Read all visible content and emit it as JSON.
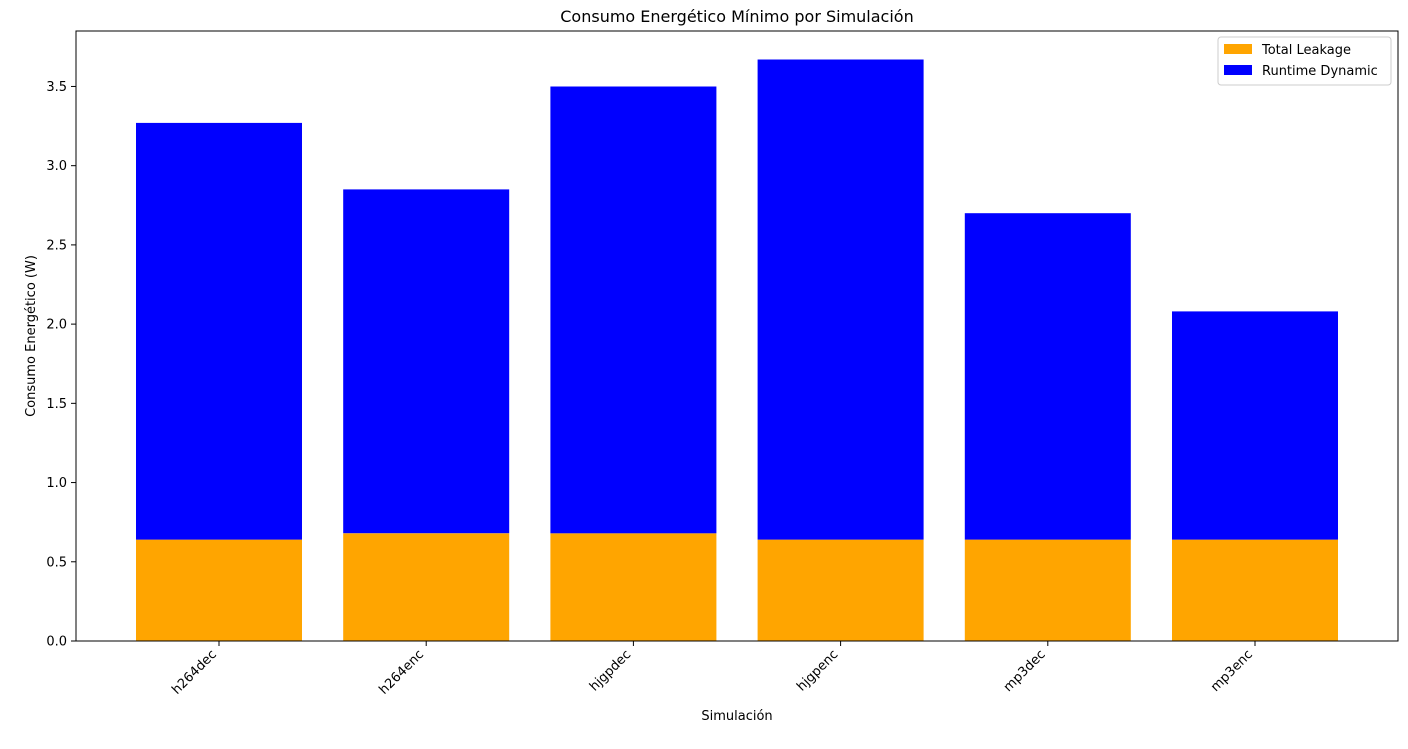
{
  "chart_data": {
    "type": "bar",
    "stacked": true,
    "title": "Consumo Energético Mínimo por Simulación",
    "xlabel": "Simulación",
    "ylabel": "Consumo Energético (W)",
    "categories": [
      "h264dec",
      "h264enc",
      "hjgpdec",
      "hjgpenc",
      "mp3dec",
      "mp3enc"
    ],
    "series": [
      {
        "name": "Total Leakage",
        "color": "#ffa500",
        "values": [
          0.64,
          0.68,
          0.68,
          0.64,
          0.64,
          0.64
        ]
      },
      {
        "name": "Runtime Dynamic",
        "color": "#0000ff",
        "values": [
          2.63,
          2.17,
          2.82,
          3.03,
          2.06,
          1.44
        ]
      }
    ],
    "ylim": [
      0,
      3.85
    ],
    "yticks": [
      "0.0",
      "0.5",
      "1.0",
      "1.5",
      "2.0",
      "2.5",
      "3.0",
      "3.5"
    ],
    "grid": false,
    "legend_position": "top-right"
  }
}
